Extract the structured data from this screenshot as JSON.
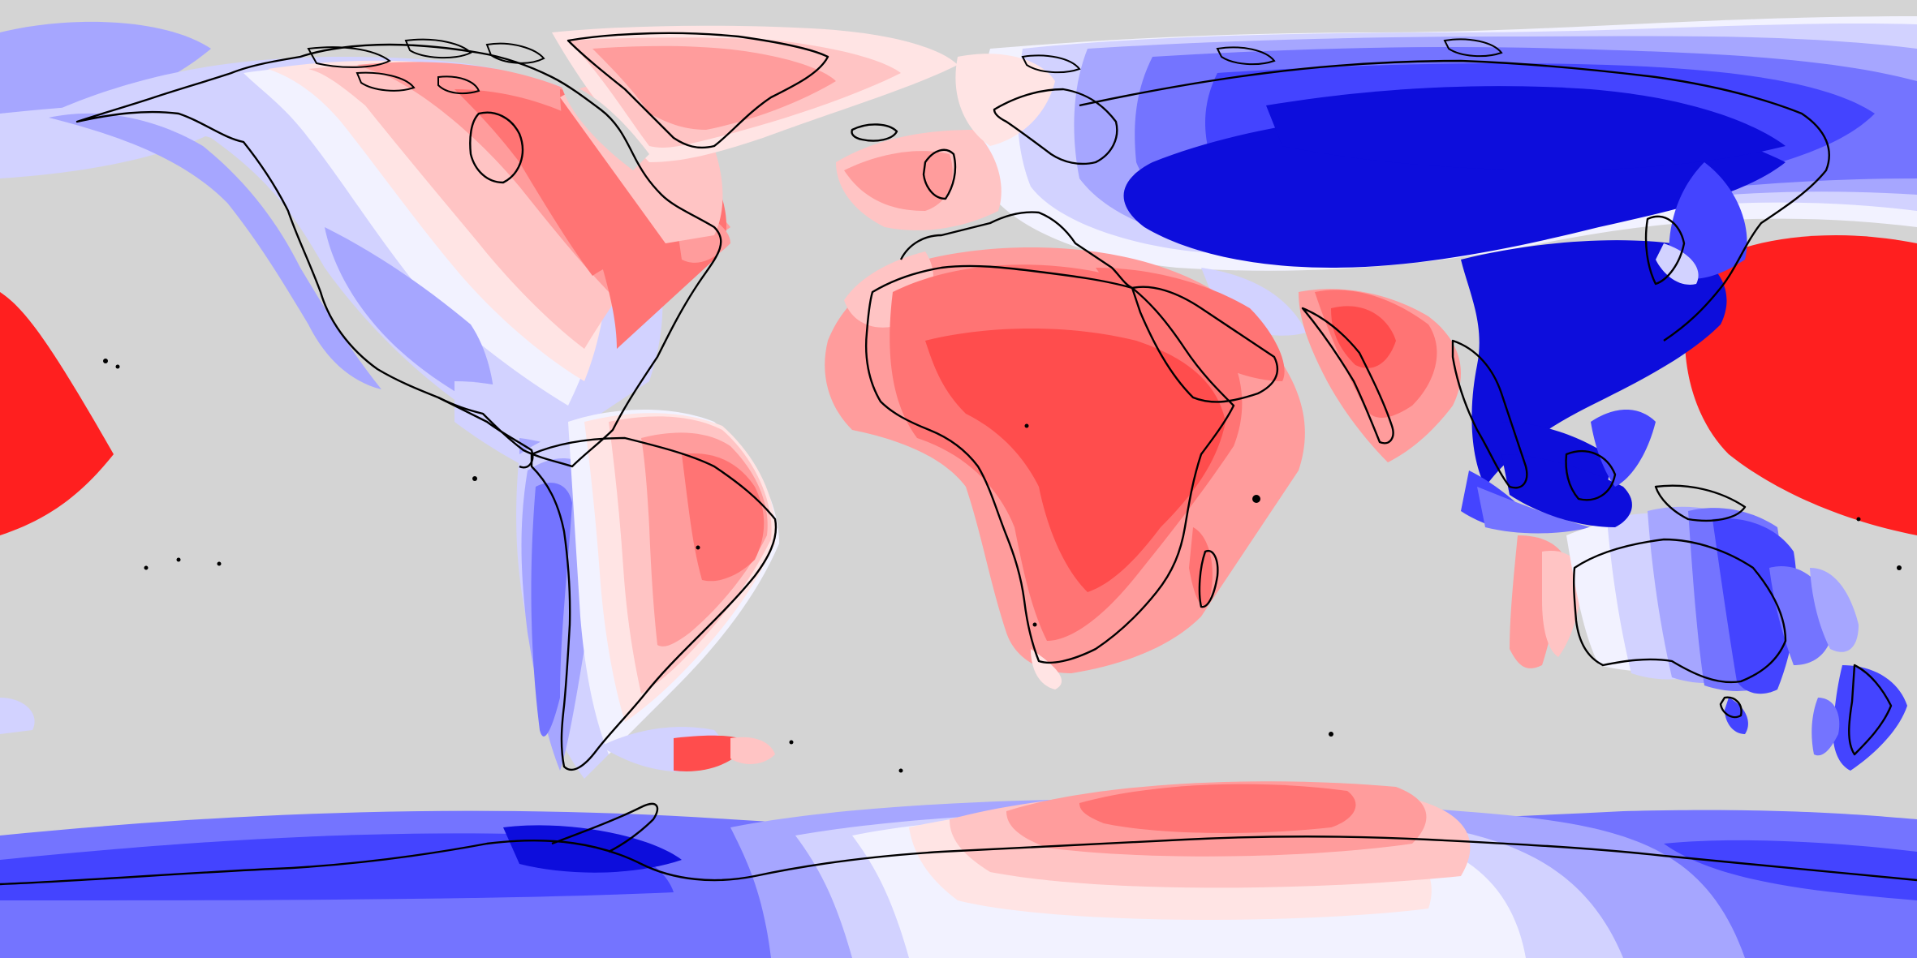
{
  "map": {
    "projection": "equirectangular",
    "ocean_color": "#d4d4d4",
    "coastline_color": "#000000",
    "palette": {
      "red_strong": "#ff1f1f",
      "red": "#ff4d4d",
      "red_mid": "#ff7474",
      "red_light": "#ff9c9c",
      "pink": "#ffc4c4",
      "pink_pale": "#ffe4e4",
      "white": "#f2f2ff",
      "blue_pale": "#d2d2ff",
      "blue_light": "#a6a6ff",
      "blue_mid": "#7474ff",
      "blue": "#4444ff",
      "blue_strong": "#0d0ddc"
    }
  }
}
